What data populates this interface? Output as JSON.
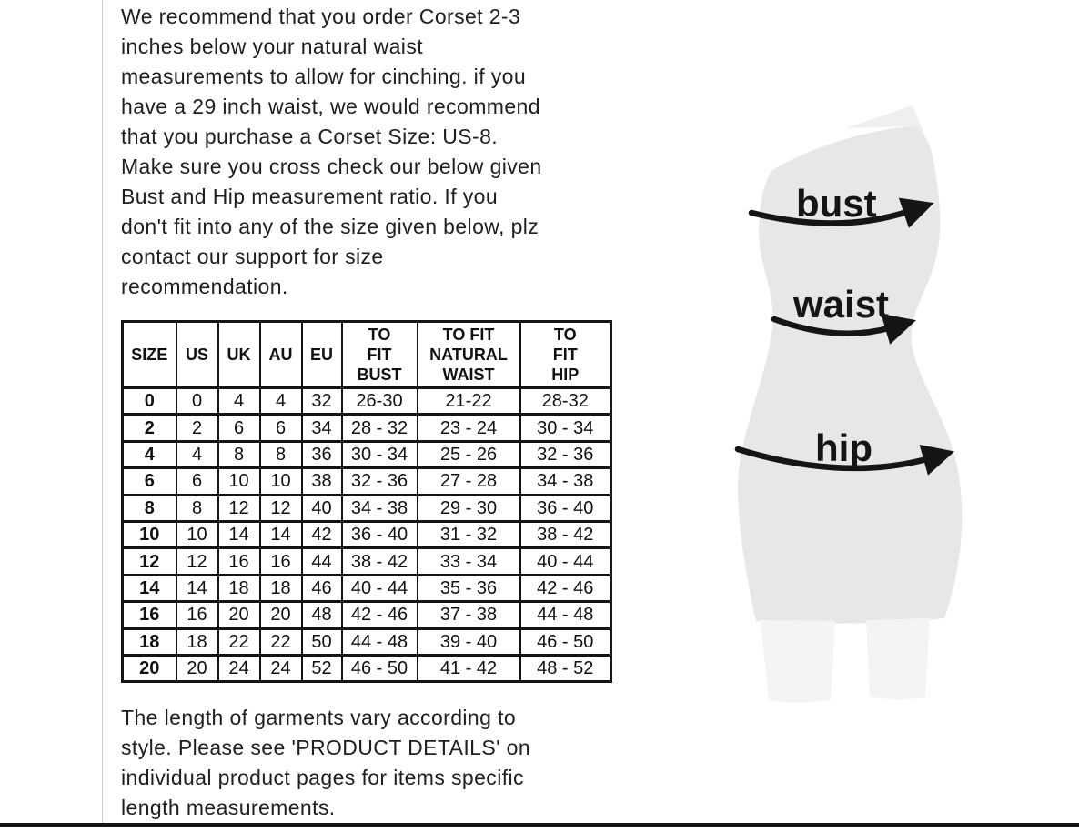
{
  "intro_paragraph": "We recommend that you order Corset 2-3\ninches below your natural waist\nmeasurements to allow for cinching. if you\nhave a 29 inch waist, we would recommend\nthat you purchase a Corset Size: US-8.\nMake sure you cross check our below given\nBust and Hip measurement ratio. If you\ndon't fit into any of the size given below, plz\ncontact our support for size\nrecommendation.",
  "length_note": "The length of garments vary according to\nstyle. Please see 'PRODUCT DETAILS'  on\nindividual product pages for items specific\nlength measurements.",
  "chart_data": {
    "type": "table",
    "title": "Corset size chart",
    "columns": [
      "SIZE",
      "US",
      "UK",
      "AU",
      "EU",
      "TO\nFIT\nBUST",
      "TO FIT\nNATURAL\nWAIST",
      "TO\nFIT\nHIP"
    ],
    "rows": [
      [
        "0",
        "0",
        "4",
        "4",
        "32",
        "26-30",
        "21-22",
        "28-32"
      ],
      [
        "2",
        "2",
        "6",
        "6",
        "34",
        "28 - 32",
        "23 - 24",
        "30 - 34"
      ],
      [
        "4",
        "4",
        "8",
        "8",
        "36",
        "30 - 34",
        "25 - 26",
        "32 - 36"
      ],
      [
        "6",
        "6",
        "10",
        "10",
        "38",
        "32 - 36",
        "27 - 28",
        "34 - 38"
      ],
      [
        "8",
        "8",
        "12",
        "12",
        "40",
        "34 - 38",
        "29 - 30",
        "36 - 40"
      ],
      [
        "10",
        "10",
        "14",
        "14",
        "42",
        "36 - 40",
        "31 - 32",
        "38 - 42"
      ],
      [
        "12",
        "12",
        "16",
        "16",
        "44",
        "38 - 42",
        "33 - 34",
        "40 - 44"
      ],
      [
        "14",
        "14",
        "18",
        "18",
        "46",
        "40 - 44",
        "35 - 36",
        "42 - 46"
      ],
      [
        "16",
        "16",
        "20",
        "20",
        "48",
        "42 - 46",
        "37 - 38",
        "44 - 48"
      ],
      [
        "18",
        "18",
        "22",
        "22",
        "50",
        "44 - 48",
        "39 - 40",
        "46 - 50"
      ],
      [
        "20",
        "20",
        "24",
        "24",
        "52",
        "46 - 50",
        "41 - 42",
        "48 - 52"
      ]
    ]
  },
  "figure": {
    "labels": {
      "bust": "bust",
      "waist": "waist",
      "hip": "hip"
    }
  },
  "colors": {
    "ink": "#151515",
    "text": "#1f1f1f",
    "body": "#e7e7e7",
    "legs": "#f4f4f4",
    "flap": "#efefef",
    "rule": "#cccccc"
  }
}
